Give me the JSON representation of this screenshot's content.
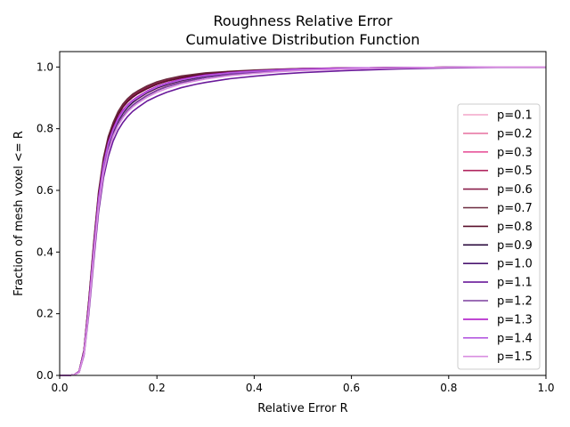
{
  "chart_data": {
    "type": "line",
    "title": "Roughness Relative Error",
    "subtitle": "Cumulative Distribution Function",
    "xlabel": "Relative Error R",
    "ylabel": "Fraction of mesh voxel <= R",
    "xlim": [
      0,
      1
    ],
    "ylim": [
      0,
      1.05
    ],
    "xticks": [
      0,
      0.2,
      0.4,
      0.6,
      0.8,
      1
    ],
    "xtick_labels": [
      "0.0",
      "0.2",
      "0.4",
      "0.6",
      "0.8",
      "1.0"
    ],
    "yticks": [
      0,
      0.2,
      0.4,
      0.6,
      0.8,
      1
    ],
    "ytick_labels": [
      "0.0",
      "0.2",
      "0.4",
      "0.6",
      "0.8",
      "1.0"
    ],
    "grid": false,
    "legend_position": "right",
    "x": [
      0.0,
      0.02,
      0.03,
      0.04,
      0.05,
      0.06,
      0.07,
      0.08,
      0.09,
      0.1,
      0.11,
      0.12,
      0.13,
      0.14,
      0.15,
      0.16,
      0.18,
      0.2,
      0.22,
      0.25,
      0.28,
      0.3,
      0.35,
      0.4,
      0.45,
      0.5,
      0.6,
      0.7,
      0.8,
      0.9,
      1.0
    ],
    "series": [
      {
        "name": "p=0.1",
        "color": "#f4a6c8",
        "values": [
          0,
          0.0,
          0.002,
          0.01,
          0.07,
          0.22,
          0.4,
          0.56,
          0.67,
          0.74,
          0.79,
          0.825,
          0.85,
          0.87,
          0.885,
          0.895,
          0.915,
          0.93,
          0.94,
          0.955,
          0.965,
          0.97,
          0.98,
          0.985,
          0.99,
          0.993,
          0.996,
          0.998,
          0.999,
          1.0,
          1.0
        ]
      },
      {
        "name": "p=0.2",
        "color": "#e87aa6",
        "values": [
          0,
          0.0,
          0.002,
          0.012,
          0.075,
          0.23,
          0.41,
          0.57,
          0.68,
          0.75,
          0.8,
          0.83,
          0.855,
          0.875,
          0.89,
          0.9,
          0.92,
          0.935,
          0.945,
          0.958,
          0.967,
          0.972,
          0.981,
          0.986,
          0.99,
          0.993,
          0.996,
          0.998,
          0.999,
          1.0,
          1.0
        ]
      },
      {
        "name": "p=0.3",
        "color": "#e8559a",
        "values": [
          0,
          0.0,
          0.002,
          0.012,
          0.075,
          0.23,
          0.41,
          0.575,
          0.685,
          0.755,
          0.8,
          0.835,
          0.86,
          0.878,
          0.892,
          0.903,
          0.922,
          0.937,
          0.948,
          0.96,
          0.969,
          0.974,
          0.982,
          0.987,
          0.991,
          0.994,
          0.997,
          0.998,
          0.999,
          1.0,
          1.0
        ]
      },
      {
        "name": "p=0.5",
        "color": "#b0245e",
        "values": [
          0,
          0.0,
          0.002,
          0.013,
          0.08,
          0.24,
          0.42,
          0.585,
          0.695,
          0.765,
          0.81,
          0.845,
          0.87,
          0.888,
          0.902,
          0.913,
          0.93,
          0.944,
          0.954,
          0.965,
          0.973,
          0.977,
          0.984,
          0.988,
          0.992,
          0.994,
          0.997,
          0.998,
          0.999,
          1.0,
          1.0
        ]
      },
      {
        "name": "p=0.6",
        "color": "#8a1f4a",
        "values": [
          0,
          0.0,
          0.002,
          0.013,
          0.08,
          0.24,
          0.425,
          0.59,
          0.7,
          0.77,
          0.815,
          0.85,
          0.875,
          0.893,
          0.907,
          0.918,
          0.935,
          0.948,
          0.957,
          0.968,
          0.975,
          0.979,
          0.985,
          0.989,
          0.992,
          0.995,
          0.997,
          0.998,
          0.999,
          1.0,
          1.0
        ]
      },
      {
        "name": "p=0.7",
        "color": "#6b2a3f",
        "values": [
          0,
          0.0,
          0.002,
          0.013,
          0.082,
          0.245,
          0.43,
          0.595,
          0.705,
          0.775,
          0.82,
          0.855,
          0.88,
          0.898,
          0.912,
          0.922,
          0.939,
          0.952,
          0.961,
          0.971,
          0.977,
          0.981,
          0.986,
          0.99,
          0.993,
          0.995,
          0.997,
          0.998,
          0.999,
          1.0,
          1.0
        ]
      },
      {
        "name": "p=0.8",
        "color": "#5a0f2a",
        "values": [
          0,
          0.0,
          0.002,
          0.013,
          0.08,
          0.24,
          0.42,
          0.585,
          0.695,
          0.765,
          0.81,
          0.845,
          0.87,
          0.888,
          0.902,
          0.913,
          0.93,
          0.944,
          0.954,
          0.965,
          0.973,
          0.977,
          0.984,
          0.988,
          0.992,
          0.994,
          0.997,
          0.998,
          0.999,
          1.0,
          1.0
        ]
      },
      {
        "name": "p=0.9",
        "color": "#2a0a3d",
        "values": [
          0,
          0.0,
          0.002,
          0.012,
          0.075,
          0.225,
          0.4,
          0.56,
          0.67,
          0.74,
          0.79,
          0.825,
          0.85,
          0.87,
          0.885,
          0.897,
          0.917,
          0.932,
          0.943,
          0.956,
          0.965,
          0.97,
          0.979,
          0.985,
          0.989,
          0.992,
          0.996,
          0.998,
          0.999,
          1.0,
          1.0
        ]
      },
      {
        "name": "p=1.0",
        "color": "#4a1670",
        "values": [
          0,
          0.0,
          0.002,
          0.011,
          0.07,
          0.215,
          0.39,
          0.55,
          0.66,
          0.73,
          0.78,
          0.815,
          0.84,
          0.86,
          0.876,
          0.888,
          0.908,
          0.924,
          0.936,
          0.95,
          0.96,
          0.966,
          0.976,
          0.982,
          0.987,
          0.99,
          0.995,
          0.997,
          0.999,
          1.0,
          1.0
        ]
      },
      {
        "name": "p=1.1",
        "color": "#6a1a9a",
        "values": [
          0,
          0.0,
          0.002,
          0.01,
          0.065,
          0.2,
          0.37,
          0.53,
          0.64,
          0.71,
          0.76,
          0.795,
          0.82,
          0.84,
          0.856,
          0.868,
          0.89,
          0.905,
          0.918,
          0.933,
          0.944,
          0.95,
          0.962,
          0.97,
          0.977,
          0.982,
          0.989,
          0.994,
          0.997,
          0.999,
          1.0
        ]
      },
      {
        "name": "p=1.2",
        "color": "#7b3f9e",
        "values": [
          0,
          0.0,
          0.002,
          0.011,
          0.07,
          0.215,
          0.39,
          0.55,
          0.66,
          0.73,
          0.78,
          0.815,
          0.84,
          0.86,
          0.876,
          0.888,
          0.908,
          0.924,
          0.936,
          0.95,
          0.96,
          0.966,
          0.976,
          0.982,
          0.987,
          0.99,
          0.995,
          0.997,
          0.999,
          1.0,
          1.0
        ]
      },
      {
        "name": "p=1.3",
        "color": "#b01cc8",
        "values": [
          0,
          0.0,
          0.002,
          0.012,
          0.075,
          0.23,
          0.41,
          0.575,
          0.685,
          0.755,
          0.8,
          0.835,
          0.86,
          0.878,
          0.892,
          0.903,
          0.922,
          0.937,
          0.948,
          0.96,
          0.969,
          0.974,
          0.982,
          0.987,
          0.991,
          0.994,
          0.997,
          0.998,
          0.999,
          1.0,
          1.0
        ]
      },
      {
        "name": "p=1.4",
        "color": "#b55be0",
        "values": [
          0,
          0.0,
          0.002,
          0.012,
          0.075,
          0.225,
          0.405,
          0.57,
          0.68,
          0.75,
          0.795,
          0.83,
          0.855,
          0.875,
          0.89,
          0.9,
          0.92,
          0.935,
          0.946,
          0.958,
          0.967,
          0.972,
          0.981,
          0.986,
          0.99,
          0.993,
          0.996,
          0.998,
          0.999,
          1.0,
          1.0
        ]
      },
      {
        "name": "p=1.5",
        "color": "#d98ee0",
        "values": [
          0,
          0.0,
          0.002,
          0.01,
          0.068,
          0.21,
          0.385,
          0.545,
          0.655,
          0.725,
          0.775,
          0.81,
          0.835,
          0.855,
          0.87,
          0.882,
          0.902,
          0.918,
          0.93,
          0.945,
          0.955,
          0.961,
          0.972,
          0.979,
          0.985,
          0.989,
          0.994,
          0.997,
          0.999,
          1.0,
          1.0
        ]
      }
    ]
  }
}
